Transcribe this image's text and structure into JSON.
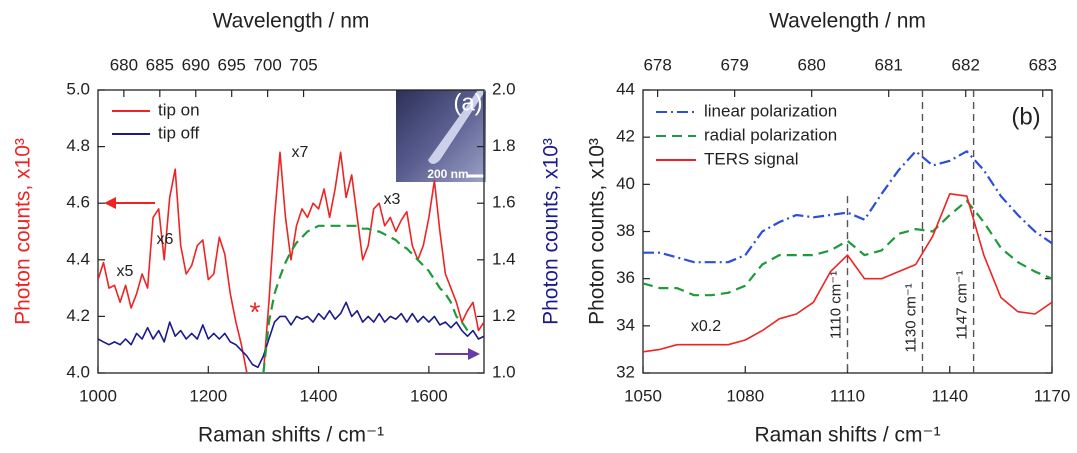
{
  "chart_data": [
    {
      "type": "line",
      "x2label": "Wavelength / nm",
      "xlabel": "Raman shifts / cm⁻¹",
      "ylabel": "Photon counts, x10³",
      "y2label": "Photon counts, x10³",
      "panel_label": "(a)",
      "x": [
        1000,
        1010,
        1020,
        1030,
        1040,
        1050,
        1060,
        1070,
        1080,
        1090,
        1100,
        1110,
        1120,
        1130,
        1140,
        1150,
        1160,
        1170,
        1180,
        1190,
        1200,
        1210,
        1220,
        1230,
        1240,
        1250,
        1260,
        1270,
        1280,
        1290,
        1300,
        1310,
        1320,
        1330,
        1340,
        1350,
        1360,
        1370,
        1380,
        1390,
        1400,
        1410,
        1420,
        1430,
        1440,
        1450,
        1460,
        1470,
        1480,
        1490,
        1500,
        1510,
        1520,
        1530,
        1540,
        1550,
        1560,
        1570,
        1580,
        1590,
        1600,
        1610,
        1620,
        1630,
        1640,
        1650,
        1660,
        1670,
        1680,
        1690,
        1700
      ],
      "xlim": [
        1000,
        1700
      ],
      "xticks": [
        1000,
        1200,
        1400,
        1600
      ],
      "x2lim": [
        676.4,
        730.1
      ],
      "x2ticks": [
        680,
        685,
        690,
        695,
        700,
        705
      ],
      "ylim": [
        4,
        5
      ],
      "yticks": [
        {
          "value": 4,
          "label": "4.0"
        },
        4.2,
        4.4,
        4.6,
        4.8,
        {
          "value": 5,
          "label": "5.0"
        }
      ],
      "y2lim": [
        1,
        2
      ],
      "y2ticks": [
        {
          "value": 1,
          "label": "1.0"
        },
        1.2,
        1.4,
        1.6,
        1.8,
        {
          "value": 2,
          "label": "2.0"
        }
      ],
      "series": [
        {
          "name": "tip on",
          "color": "#ee2424",
          "dash": "solid",
          "values": [
            4.33,
            4.39,
            4.3,
            4.31,
            4.25,
            4.31,
            4.23,
            4.28,
            4.35,
            4.3,
            4.55,
            4.58,
            4.4,
            4.62,
            4.72,
            4.45,
            4.35,
            4.38,
            4.45,
            4.47,
            4.33,
            4.35,
            4.48,
            4.42,
            4.28,
            4.18,
            4.1,
            4.0,
            3.9,
            3.9,
            4.0,
            4.25,
            4.55,
            4.78,
            4.55,
            4.4,
            4.52,
            4.58,
            4.55,
            4.6,
            4.58,
            4.65,
            4.55,
            4.65,
            4.78,
            4.62,
            4.7,
            4.55,
            4.4,
            4.45,
            4.58,
            4.6,
            4.52,
            4.55,
            4.5,
            4.54,
            4.57,
            4.45,
            4.4,
            4.45,
            4.55,
            4.68,
            4.5,
            4.35,
            4.3,
            4.25,
            4.18,
            4.22,
            4.25,
            4.15,
            4.18
          ]
        },
        {
          "name": "tip off",
          "color": "#1a1a8c",
          "dash": "solid",
          "axis": "y2",
          "values": [
            1.12,
            1.11,
            1.1,
            1.11,
            1.1,
            1.12,
            1.1,
            1.14,
            1.12,
            1.16,
            1.12,
            1.15,
            1.11,
            1.18,
            1.13,
            1.15,
            1.12,
            1.14,
            1.12,
            1.17,
            1.12,
            1.14,
            1.12,
            1.14,
            1.11,
            1.1,
            1.08,
            1.06,
            1.03,
            1.02,
            1.06,
            1.12,
            1.18,
            1.2,
            1.2,
            1.17,
            1.2,
            1.19,
            1.2,
            1.18,
            1.21,
            1.19,
            1.22,
            1.19,
            1.21,
            1.25,
            1.2,
            1.22,
            1.18,
            1.2,
            1.18,
            1.21,
            1.18,
            1.2,
            1.19,
            1.21,
            1.18,
            1.21,
            1.18,
            1.2,
            1.18,
            1.2,
            1.17,
            1.18,
            1.16,
            1.18,
            1.15,
            1.13,
            1.15,
            1.12,
            1.13
          ]
        },
        {
          "color": "#1f9a3a",
          "dash": "dashed",
          "values": [
            null,
            null,
            null,
            null,
            null,
            null,
            null,
            null,
            null,
            null,
            null,
            null,
            null,
            null,
            null,
            null,
            null,
            null,
            null,
            null,
            null,
            null,
            null,
            null,
            null,
            null,
            null,
            null,
            null,
            null,
            4.0,
            4.18,
            4.28,
            4.34,
            4.39,
            4.43,
            4.46,
            4.48,
            4.5,
            4.51,
            4.52,
            4.52,
            4.52,
            4.52,
            4.52,
            4.52,
            4.52,
            4.52,
            4.51,
            4.51,
            4.5,
            4.5,
            4.49,
            4.48,
            4.47,
            4.45,
            4.44,
            4.42,
            4.4,
            4.38,
            4.36,
            4.33,
            4.3,
            4.28,
            4.25,
            4.2,
            4.18,
            4.15,
            null,
            null,
            null
          ]
        }
      ],
      "annotations": [
        "x5",
        "x6",
        "x7",
        "x3",
        "*",
        "200 nm"
      ]
    },
    {
      "type": "line",
      "x2label": "Wavelength / nm",
      "xlabel": "Raman shifts / cm⁻¹",
      "ylabel": "Photon counts, x10³",
      "panel_label": "(b)",
      "x": [
        1050,
        1055,
        1060,
        1065,
        1070,
        1075,
        1080,
        1085,
        1090,
        1095,
        1100,
        1105,
        1110,
        1115,
        1120,
        1125,
        1130,
        1135,
        1140,
        1145,
        1150,
        1155,
        1160,
        1165,
        1170
      ],
      "xlim": [
        1050,
        1170
      ],
      "xticks": [
        1050,
        1080,
        1110,
        1140,
        1170
      ],
      "x2lim": [
        677.81,
        683.12
      ],
      "x2ticks": [
        678,
        679,
        680,
        681,
        682,
        683
      ],
      "ylim": [
        32,
        44
      ],
      "yticks": [
        32,
        34,
        36,
        38,
        40,
        42,
        44
      ],
      "series": [
        {
          "name": "linear polarization",
          "color": "#2a4fd8",
          "dash": "dashdot",
          "values": [
            37.1,
            37.1,
            36.9,
            36.7,
            36.7,
            36.7,
            37.0,
            38.0,
            38.4,
            38.7,
            38.6,
            38.7,
            38.8,
            38.5,
            39.6,
            40.6,
            41.4,
            40.8,
            41.0,
            41.4,
            40.6,
            39.5,
            38.7,
            38.0,
            37.5
          ]
        },
        {
          "name": "radial polarization",
          "color": "#1f9a3a",
          "dash": "dashed",
          "values": [
            35.8,
            35.6,
            35.6,
            35.3,
            35.3,
            35.4,
            35.7,
            36.6,
            37.0,
            37.0,
            37.0,
            37.2,
            37.6,
            37.0,
            37.2,
            37.9,
            38.1,
            38.0,
            38.7,
            39.3,
            38.4,
            37.3,
            36.7,
            36.3,
            36.0
          ]
        },
        {
          "name": "TERS signal",
          "color": "#ee2424",
          "dash": "solid",
          "values": [
            32.9,
            33.0,
            33.2,
            33.2,
            33.2,
            33.2,
            33.4,
            33.8,
            34.3,
            34.5,
            35.0,
            36.3,
            37.0,
            36.0,
            36.0,
            36.3,
            36.6,
            37.8,
            39.6,
            39.5,
            37.0,
            35.2,
            34.6,
            34.5,
            35.0
          ]
        }
      ],
      "reference_lines": [
        {
          "value": 1110,
          "label": "1110 cm⁻¹"
        },
        {
          "value": 1132,
          "label": "1130 cm⁻¹"
        },
        {
          "value": 1147,
          "label": "1147 cm⁻¹"
        }
      ],
      "annotations": [
        "x0.2"
      ]
    }
  ]
}
